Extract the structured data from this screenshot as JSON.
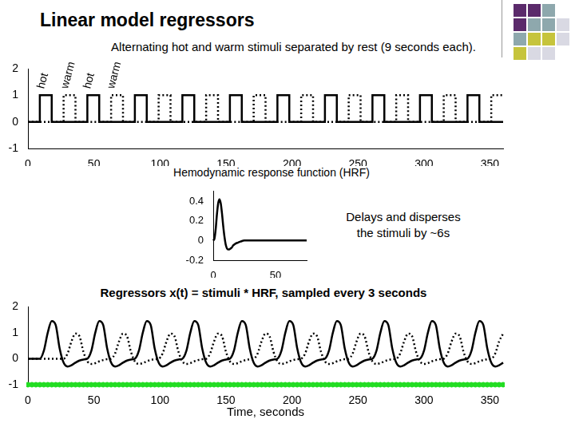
{
  "title": "Linear model regressors",
  "chart_data": [
    {
      "type": "line",
      "title": "Alternating hot and warm stimuli separated by rest (9 seconds each).",
      "xlim": [
        0,
        360
      ],
      "xticks": [
        0,
        50,
        100,
        150,
        200,
        250,
        300,
        350
      ],
      "ylim": [
        -1,
        2
      ],
      "yticks": [
        -1,
        0,
        1,
        2
      ],
      "grid": false,
      "series": [
        {
          "type": "step",
          "color": "#000000",
          "line_style": "solid",
          "x": [
            0,
            9,
            18,
            45,
            54,
            81,
            90,
            117,
            126,
            153,
            162,
            189,
            198,
            225,
            234,
            261,
            270,
            297,
            306,
            333,
            342,
            360
          ],
          "values": [
            0,
            1,
            0,
            1,
            0,
            1,
            0,
            1,
            0,
            1,
            0,
            1,
            0,
            1,
            0,
            1,
            0,
            1,
            0,
            1,
            0,
            0
          ]
        },
        {
          "type": "step",
          "color": "#000000",
          "line_style": "dotted",
          "x": [
            0,
            27,
            36,
            63,
            72,
            99,
            108,
            135,
            144,
            171,
            180,
            207,
            216,
            243,
            252,
            279,
            288,
            315,
            324,
            351,
            360
          ],
          "values": [
            0,
            1,
            0,
            1,
            0,
            1,
            0,
            1,
            0,
            1,
            0,
            1,
            0,
            1,
            0,
            1,
            0,
            1,
            0,
            1,
            1
          ]
        }
      ],
      "annotations": [
        {
          "text": "hot",
          "x": 14,
          "y": 1.2
        },
        {
          "text": "warm",
          "x": 32,
          "y": 1.2
        },
        {
          "text": "hot",
          "x": 49,
          "y": 1.2
        },
        {
          "text": "warm",
          "x": 67,
          "y": 1.2
        }
      ]
    },
    {
      "type": "line",
      "title": "Hemodynamic response function (HRF)",
      "xlim": [
        0,
        75
      ],
      "xticks": [
        0,
        50
      ],
      "ylim": [
        -0.2,
        0.5
      ],
      "yticks": [
        -0.2,
        0,
        0.2,
        0.4
      ],
      "grid": false,
      "color": "#000000",
      "line_style": "solid",
      "x": [
        0,
        1,
        2,
        3,
        4,
        5,
        6,
        7,
        8,
        9,
        10,
        11,
        12,
        13,
        14,
        15,
        16,
        17,
        18,
        20,
        22,
        25,
        30,
        75
      ],
      "values": [
        0,
        0.02,
        0.12,
        0.27,
        0.38,
        0.42,
        0.38,
        0.28,
        0.15,
        0.04,
        -0.04,
        -0.08,
        -0.09,
        -0.09,
        -0.08,
        -0.07,
        -0.05,
        -0.04,
        -0.03,
        -0.02,
        -0.01,
        0,
        0,
        0
      ],
      "annotations": [
        {
          "text": "Delays and disperses the stimuli by ~6s"
        }
      ]
    },
    {
      "type": "line",
      "title": "Regressors x(t) = stimuli * HRF, sampled every 3 seconds",
      "x_label": "Time, seconds",
      "xlim": [
        0,
        360
      ],
      "xticks": [
        0,
        50,
        100,
        150,
        200,
        250,
        300,
        350
      ],
      "ylim": [
        -1,
        2
      ],
      "yticks": [
        -1,
        0,
        1,
        2
      ],
      "grid": false,
      "x": [
        0,
        3,
        6,
        9,
        12,
        15,
        18,
        21,
        24,
        27,
        30,
        33,
        36,
        39,
        42,
        45,
        48,
        51,
        54,
        57,
        60,
        63,
        66,
        69,
        72,
        75,
        78,
        81,
        84,
        87,
        90,
        93,
        96,
        99,
        102,
        105,
        108,
        111,
        114,
        117,
        120,
        123,
        126,
        129,
        132,
        135,
        138,
        141,
        144,
        147,
        150,
        153,
        156,
        159,
        162,
        165,
        168,
        171,
        174,
        177,
        180,
        183,
        186,
        189,
        192,
        195,
        198,
        201,
        204,
        207,
        210,
        213,
        216,
        219,
        222,
        225,
        228,
        231,
        234,
        237,
        240,
        243,
        246,
        249,
        252,
        255,
        258,
        261,
        264,
        267,
        270,
        273,
        276,
        279,
        282,
        285,
        288,
        291,
        294,
        297,
        300,
        303,
        306,
        309,
        312,
        315,
        318,
        321,
        324,
        327,
        330,
        333,
        336,
        339,
        342,
        345,
        348,
        351,
        354,
        357,
        360
      ],
      "series": [
        {
          "color": "#000000",
          "line_style": "solid",
          "values": [
            0,
            0,
            0,
            0,
            0.3,
            1,
            1.45,
            1.3,
            0.4,
            -0.15,
            -0.3,
            -0.25,
            -0.15,
            -0.07,
            -0.03,
            0,
            0.3,
            1,
            1.45,
            1.3,
            0.4,
            -0.15,
            -0.3,
            -0.25,
            -0.15,
            -0.07,
            -0.03,
            0,
            0.3,
            1,
            1.45,
            1.3,
            0.4,
            -0.15,
            -0.3,
            -0.25,
            -0.15,
            -0.07,
            -0.03,
            0,
            0.3,
            1,
            1.45,
            1.3,
            0.4,
            -0.15,
            -0.3,
            -0.25,
            -0.15,
            -0.07,
            -0.03,
            0,
            0.3,
            1,
            1.45,
            1.3,
            0.4,
            -0.15,
            -0.3,
            -0.25,
            -0.15,
            -0.07,
            -0.03,
            0,
            0.3,
            1,
            1.45,
            1.3,
            0.4,
            -0.15,
            -0.3,
            -0.25,
            -0.15,
            -0.07,
            -0.03,
            0,
            0.3,
            1,
            1.45,
            1.3,
            0.4,
            -0.15,
            -0.3,
            -0.25,
            -0.15,
            -0.07,
            -0.03,
            0,
            0.3,
            1,
            1.45,
            1.3,
            0.4,
            -0.15,
            -0.3,
            -0.25,
            -0.15,
            -0.07,
            -0.03,
            0,
            0.3,
            1,
            1.45,
            1.3,
            0.4,
            -0.15,
            -0.3,
            -0.25,
            -0.15,
            -0.07,
            -0.03,
            0,
            0.3,
            1,
            1.45,
            1.3,
            0.4,
            -0.15,
            -0.3,
            -0.25,
            -0.15
          ]
        },
        {
          "color": "#000000",
          "line_style": "dotted",
          "values": [
            0,
            0,
            0,
            0,
            0,
            0,
            0,
            0,
            0,
            0,
            0.2,
            0.67,
            0.97,
            0.87,
            0.27,
            -0.1,
            -0.2,
            -0.17,
            -0.1,
            -0.05,
            -0.02,
            0,
            0.2,
            0.67,
            0.97,
            0.87,
            0.27,
            -0.1,
            -0.2,
            -0.17,
            -0.1,
            -0.05,
            -0.02,
            0,
            0.2,
            0.67,
            0.97,
            0.87,
            0.27,
            -0.1,
            -0.2,
            -0.17,
            -0.1,
            -0.05,
            -0.02,
            0,
            0.2,
            0.67,
            0.97,
            0.87,
            0.27,
            -0.1,
            -0.2,
            -0.17,
            -0.1,
            -0.05,
            -0.02,
            0,
            0.2,
            0.67,
            0.97,
            0.87,
            0.27,
            -0.1,
            -0.2,
            -0.17,
            -0.1,
            -0.05,
            -0.02,
            0,
            0.2,
            0.67,
            0.97,
            0.87,
            0.27,
            -0.1,
            -0.2,
            -0.17,
            -0.1,
            -0.05,
            -0.02,
            0,
            0.2,
            0.67,
            0.97,
            0.87,
            0.27,
            -0.1,
            -0.2,
            -0.17,
            -0.1,
            -0.05,
            -0.02,
            0,
            0.2,
            0.67,
            0.97,
            0.87,
            0.27,
            -0.1,
            -0.2,
            -0.17,
            -0.1,
            -0.05,
            -0.02,
            0,
            0.2,
            0.67,
            0.97,
            0.87,
            0.27,
            -0.1,
            -0.2,
            -0.17,
            -0.1,
            -0.05,
            -0.02,
            0,
            0.2,
            0.67,
            0.97
          ]
        },
        {
          "color": "#22dd22",
          "line_style": "solid",
          "marker": "circle",
          "values": [
            -1,
            -1,
            -1,
            -1,
            -1,
            -1,
            -1,
            -1,
            -1,
            -1,
            -1,
            -1,
            -1,
            -1,
            -1,
            -1,
            -1,
            -1,
            -1,
            -1,
            -1,
            -1,
            -1,
            -1,
            -1,
            -1,
            -1,
            -1,
            -1,
            -1,
            -1,
            -1,
            -1,
            -1,
            -1,
            -1,
            -1,
            -1,
            -1,
            -1,
            -1,
            -1,
            -1,
            -1,
            -1,
            -1,
            -1,
            -1,
            -1,
            -1,
            -1,
            -1,
            -1,
            -1,
            -1,
            -1,
            -1,
            -1,
            -1,
            -1,
            -1,
            -1,
            -1,
            -1,
            -1,
            -1,
            -1,
            -1,
            -1,
            -1,
            -1,
            -1,
            -1,
            -1,
            -1,
            -1,
            -1,
            -1,
            -1,
            -1,
            -1,
            -1,
            -1,
            -1,
            -1,
            -1,
            -1,
            -1,
            -1,
            -1,
            -1,
            -1,
            -1,
            -1,
            -1,
            -1,
            -1,
            -1,
            -1,
            -1,
            -1,
            -1,
            -1,
            -1,
            -1,
            -1,
            -1,
            -1,
            -1,
            -1,
            -1,
            -1,
            -1,
            -1,
            -1,
            -1,
            -1,
            -1,
            -1,
            -1,
            -1
          ]
        }
      ]
    }
  ]
}
